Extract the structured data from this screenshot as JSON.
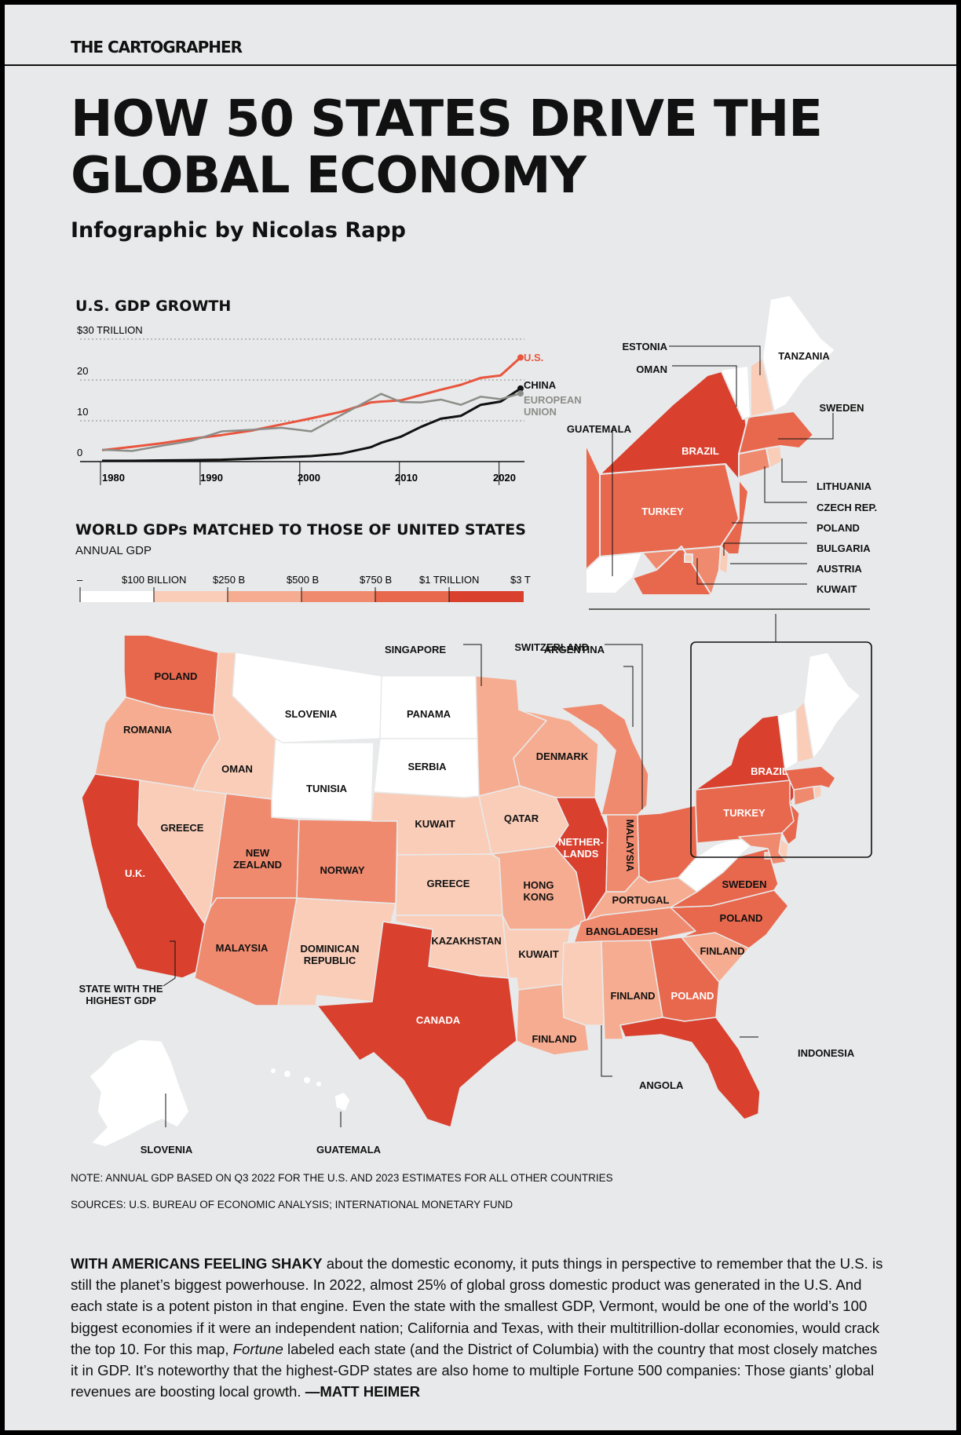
{
  "brand": "THE CARTOGRAPHER",
  "headline": {
    "line1": "HOW 50 STATES DRIVE THE",
    "line2": "GLOBAL ECONOMY"
  },
  "byline": "Infographic by Nicolas Rapp",
  "chart_data": {
    "type": "line",
    "title": "U.S. GDP GROWTH",
    "x": [
      1980,
      1983,
      1986,
      1989,
      1992,
      1995,
      1998,
      2001,
      2004,
      2007,
      2008,
      2010,
      2012,
      2014,
      2016,
      2018,
      2020,
      2022
    ],
    "series": [
      {
        "name": "U.S.",
        "color": "#e8553e",
        "values": [
          2.8,
          3.6,
          4.5,
          5.6,
          6.5,
          7.6,
          9.1,
          10.6,
          12.2,
          14.5,
          14.7,
          15.0,
          16.3,
          17.6,
          18.8,
          20.5,
          21.1,
          25.5
        ]
      },
      {
        "name": "CHINA",
        "color": "#111111",
        "values": [
          0.2,
          0.2,
          0.3,
          0.35,
          0.45,
          0.73,
          1.03,
          1.34,
          1.96,
          3.55,
          4.6,
          6.1,
          8.5,
          10.5,
          11.2,
          13.9,
          14.7,
          17.9
        ]
      },
      {
        "name": "EUROPEAN UNION",
        "color": "#8c8c88",
        "values": [
          2.9,
          2.6,
          3.9,
          5.1,
          7.4,
          7.8,
          8.3,
          7.4,
          11.4,
          15.3,
          16.6,
          14.6,
          14.5,
          15.2,
          13.9,
          15.9,
          15.3,
          16.7
        ]
      }
    ],
    "xticks": [
      "1980",
      "1990",
      "2000",
      "2010",
      "2020"
    ],
    "yticks": [
      "0",
      "10",
      "20",
      "$30 TRILLION"
    ],
    "ylim": [
      0,
      30
    ],
    "xlim": [
      1980,
      2022
    ],
    "grid": true,
    "legend": "right end of lines"
  },
  "legend": {
    "title": "WORLD GDPs MATCHED TO THOSE OF UNITED STATES",
    "subtitle": "ANNUAL GDP",
    "labels": [
      "–",
      "$100 BILLION",
      "$250 B",
      "$500 B",
      "$750 B",
      "$1 TRILLION",
      "$3 T"
    ],
    "colors": [
      "#ffffff",
      "#f9cdb8",
      "#f6ac90",
      "#f08a6e",
      "#e8684e",
      "#d9402e"
    ]
  },
  "states": [
    {
      "id": "WA",
      "country": "POLAND",
      "color": "#e8684e"
    },
    {
      "id": "OR",
      "country": "ROMANIA",
      "color": "#f6ac90"
    },
    {
      "id": "CA",
      "country": "U.K.",
      "color": "#d9402e"
    },
    {
      "id": "NV",
      "country": "GREECE",
      "color": "#f9cdb8"
    },
    {
      "id": "ID",
      "country": "OMAN",
      "color": "#f9cdb8"
    },
    {
      "id": "MT",
      "country": "SLOVENIA",
      "color": "#ffffff"
    },
    {
      "id": "WY",
      "country": "TUNISIA",
      "color": "#ffffff"
    },
    {
      "id": "UT",
      "country": "NEW ZEALAND",
      "color": "#f08a6e"
    },
    {
      "id": "AZ",
      "country": "MALAYSIA",
      "color": "#f08a6e"
    },
    {
      "id": "CO",
      "country": "NORWAY",
      "color": "#f08a6e"
    },
    {
      "id": "NM",
      "country": "DOMINICAN REPUBLIC",
      "color": "#f9cdb8"
    },
    {
      "id": "ND",
      "country": "PANAMA",
      "color": "#ffffff"
    },
    {
      "id": "SD",
      "country": "SERBIA",
      "color": "#ffffff"
    },
    {
      "id": "NE",
      "country": "KUWAIT",
      "color": "#f9cdb8"
    },
    {
      "id": "KS",
      "country": "GREECE",
      "color": "#f9cdb8"
    },
    {
      "id": "OK",
      "country": "KAZAKHSTAN",
      "color": "#f9cdb8"
    },
    {
      "id": "TX",
      "country": "CANADA",
      "color": "#d9402e"
    },
    {
      "id": "MN",
      "country": "SINGAPORE",
      "color": "#f6ac90"
    },
    {
      "id": "IA",
      "country": "QATAR",
      "color": "#f9cdb8"
    },
    {
      "id": "MO",
      "country": "HONG KONG",
      "color": "#f6ac90"
    },
    {
      "id": "AR",
      "country": "KUWAIT",
      "color": "#f9cdb8"
    },
    {
      "id": "LA",
      "country": "FINLAND",
      "color": "#f6ac90"
    },
    {
      "id": "WI",
      "country": "DENMARK",
      "color": "#f6ac90"
    },
    {
      "id": "IL",
      "country": "NETHERLANDS",
      "color": "#d9402e"
    },
    {
      "id": "MI",
      "country": "ARGENTINA",
      "color": "#f08a6e"
    },
    {
      "id": "IN",
      "country": "MALAYSIA",
      "color": "#f08a6e"
    },
    {
      "id": "OH",
      "country": "SWITZERLAND",
      "color": "#e8684e"
    },
    {
      "id": "KY",
      "country": "PORTUGAL",
      "color": "#f6ac90"
    },
    {
      "id": "TN",
      "country": "BANGLADESH",
      "color": "#f08a6e"
    },
    {
      "id": "MS",
      "country": "ANGOLA",
      "color": "#f9cdb8"
    },
    {
      "id": "AL",
      "country": "FINLAND",
      "color": "#f6ac90"
    },
    {
      "id": "GA",
      "country": "POLAND",
      "color": "#e8684e"
    },
    {
      "id": "FL",
      "country": "INDONESIA",
      "color": "#d9402e"
    },
    {
      "id": "SC",
      "country": "FINLAND",
      "color": "#f6ac90"
    },
    {
      "id": "NC",
      "country": "POLAND",
      "color": "#e8684e"
    },
    {
      "id": "VA",
      "country": "SWEDEN",
      "color": "#e8684e"
    },
    {
      "id": "WV",
      "country": "GUATEMALA",
      "color": "#ffffff"
    },
    {
      "id": "PA",
      "country": "TURKEY",
      "color": "#e8684e"
    },
    {
      "id": "NY",
      "country": "BRAZIL",
      "color": "#d9402e"
    },
    {
      "id": "NJ",
      "country": "POLAND",
      "color": "#e8684e"
    },
    {
      "id": "DE",
      "country": "BULGARIA",
      "color": "#f9cdb8"
    },
    {
      "id": "MD",
      "country": "AUSTRIA",
      "color": "#f08a6e"
    },
    {
      "id": "DC",
      "country": "KUWAIT",
      "color": "#f9cdb8"
    },
    {
      "id": "CT",
      "country": "CZECH REP.",
      "color": "#f08a6e"
    },
    {
      "id": "RI",
      "country": "LITHUANIA",
      "color": "#f9cdb8"
    },
    {
      "id": "MA",
      "country": "SWEDEN",
      "color": "#e8684e"
    },
    {
      "id": "VT",
      "country": "ESTONIA",
      "color": "#ffffff"
    },
    {
      "id": "NH",
      "country": "OMAN",
      "color": "#f9cdb8"
    },
    {
      "id": "ME",
      "country": "TANZANIA",
      "color": "#ffffff"
    },
    {
      "id": "AK",
      "country": "SLOVENIA",
      "color": "#ffffff"
    },
    {
      "id": "HI",
      "country": "GUATEMALA",
      "color": "#ffffff"
    }
  ],
  "map_labels": {
    "nether": "NETHER-",
    "lands": "LANDS",
    "new": "NEW",
    "zealand": "ZEALAND",
    "dominican": "DOMINICAN",
    "republic": "REPUBLIC",
    "hong": "HONG",
    "kong": "KONG",
    "highest1": "STATE WITH THE",
    "highest2": "HIGHEST GDP",
    "european": "EUROPEAN",
    "union": "UNION"
  },
  "note": "NOTE: ANNUAL GDP BASED ON Q3 2022 FOR THE U.S. AND 2023 ESTIMATES FOR ALL OTHER COUNTRIES",
  "sources": "SOURCES: U.S. BUREAU OF ECONOMIC ANALYSIS; INTERNATIONAL MONETARY FUND",
  "body": {
    "lead": "WITH AMERICANS FEELING SHAKY",
    "text1": " about the domestic economy, it puts things in perspective to remember that the U.S. is still the planet’s biggest powerhouse. In 2022, almost 25% of global gross domestic product was generated in the U.S. And each state is a potent piston in that engine. Even the state with the smallest GDP, Vermont, would be one of the world’s 100 biggest economies if it were an independent nation; California and Texas, with their multitrillion-dollar economies, would crack the top 10. For this map, ",
    "italic": "Fortune",
    "text2": " labeled each state (and the District of Columbia) with the country that most closely matches it in GDP. It’s noteworthy that the highest-GDP states are also home to multiple Fortune 500 companies: Those giants’ global revenues are boosting local growth. ",
    "author": "—MATT HEIMER"
  }
}
